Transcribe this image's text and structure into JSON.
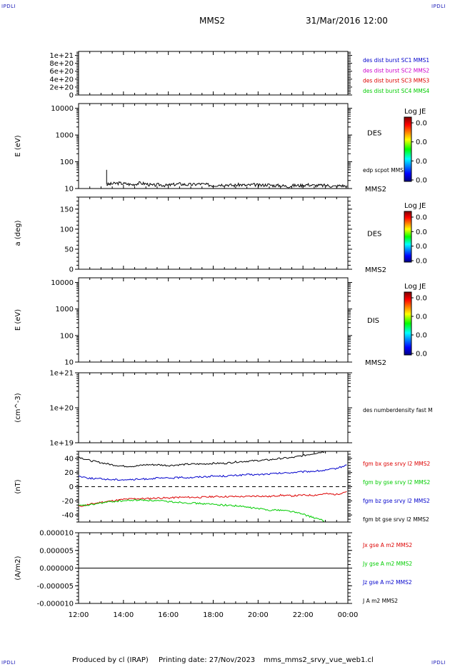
{
  "corner_label": "IPDLI",
  "header": {
    "spacecraft": "MMS2",
    "date": "31/Mar/2016 12:00"
  },
  "footer": {
    "produced_by": "Produced by cl (IRAP)",
    "printing_date": "Printing date: 27/Nov/2023",
    "file": "mms_mms2_srvy_vue_web1.cl"
  },
  "colors": {
    "black": "#000000",
    "red": "#dd0000",
    "green": "#00cc00",
    "blue": "#0000cc",
    "magenta": "#cc00cc"
  },
  "colorbar": {
    "title": "Log JE",
    "ticks": [
      "0.0",
      "0.0",
      "0.0",
      "0.0"
    ]
  },
  "time_axis": {
    "ticks": [
      "12:00",
      "14:00",
      "16:00",
      "18:00",
      "20:00",
      "22:00",
      "00:00"
    ]
  },
  "chart_data": [
    {
      "type": "line",
      "panel": "distributions",
      "ylabel": "",
      "yticks": [
        "1e+21",
        "8e+20",
        "6e+20",
        "4e+20",
        "2e+20",
        "0"
      ],
      "ylim": [
        0,
        1.1e+21
      ],
      "dashed_zero": true,
      "series": [
        {
          "name": "des dist burst SC1 MMS1",
          "color": "#0000cc"
        },
        {
          "name": "des dist burst SC2 MMS2",
          "color": "#cc00cc"
        },
        {
          "name": "des dist burst SC3 MMS3",
          "color": "#dd0000"
        },
        {
          "name": "des dist burst SC4 MMS4",
          "color": "#00cc00"
        }
      ]
    },
    {
      "type": "heatmap",
      "panel": "des-energy",
      "ylabel": "E (eV)",
      "yscale": "log",
      "yticks": [
        "10000",
        "1000",
        "100",
        "10"
      ],
      "ylim": [
        10,
        15000
      ],
      "species_label": "DES",
      "sc_label": "MMS2",
      "overlay": {
        "name": "edp scpot MMS2",
        "spike": {
          "x": 13.25,
          "y": 50
        },
        "x": [
          13.25,
          13.5,
          13.8,
          14.1,
          14.4,
          14.7,
          15.0,
          15.3,
          15.6,
          15.9,
          16.2,
          16.5,
          16.8,
          17.1,
          17.4,
          17.7,
          18.0,
          18.3,
          18.6,
          18.9,
          19.2,
          19.5,
          19.8,
          20.1,
          20.4,
          20.7,
          21.0,
          21.3,
          21.6,
          21.9,
          22.2,
          22.5,
          22.8,
          23.1,
          23.4,
          23.7,
          24.0
        ],
        "y": [
          14,
          15,
          16,
          15,
          14,
          16,
          15,
          13,
          14,
          13,
          14,
          15,
          14,
          14,
          15,
          14,
          13,
          14,
          14,
          13,
          14,
          13,
          14,
          13,
          14,
          13,
          13,
          12,
          13,
          13,
          14,
          13,
          13,
          13,
          12,
          13,
          12
        ]
      }
    },
    {
      "type": "heatmap",
      "panel": "des-pitch",
      "ylabel": "a (deg)",
      "yticks": [
        "150",
        "100",
        "50",
        "0"
      ],
      "ylim": [
        0,
        180
      ],
      "species_label": "DES",
      "sc_label": "MMS2"
    },
    {
      "type": "heatmap",
      "panel": "dis-energy",
      "ylabel": "E (eV)",
      "yscale": "log",
      "yticks": [
        "10000",
        "1000",
        "100",
        "10"
      ],
      "ylim": [
        10,
        15000
      ],
      "species_label": "DIS",
      "sc_label": "MMS2"
    },
    {
      "type": "line",
      "panel": "density",
      "ylabel": "(cm^-3)",
      "yscale": "log",
      "yticks": [
        "1e+21",
        "1e+20",
        "1e+19"
      ],
      "ylim": [
        1e+19,
        1e+21
      ],
      "series": [
        {
          "name": "des numberdensity fast M",
          "color": "#000000"
        }
      ]
    },
    {
      "type": "line",
      "panel": "fgm",
      "ylabel": "(nT)",
      "yticks": [
        "40",
        "20",
        "0",
        "-20",
        "-40"
      ],
      "ylim": [
        -50,
        50
      ],
      "dashed_zero": true,
      "x": [
        12,
        12.5,
        13,
        13.5,
        14,
        14.5,
        15,
        15.5,
        16,
        16.5,
        17,
        17.5,
        18,
        18.5,
        19,
        19.5,
        20,
        20.5,
        21,
        21.5,
        22,
        22.5,
        23,
        23.5,
        24
      ],
      "series": [
        {
          "name": "fgm bx gse srvy l2 MMS2",
          "color": "#dd0000",
          "values": [
            -28,
            -25,
            -22,
            -20,
            -18,
            -17,
            -17,
            -16,
            -16,
            -15,
            -15,
            -15,
            -14,
            -14,
            -14,
            -14,
            -13,
            -14,
            -12,
            -13,
            -12,
            -12,
            -10,
            -11,
            -6
          ]
        },
        {
          "name": "fgm by gse srvy l2 MMS2",
          "color": "#00cc00",
          "values": [
            -27,
            -26,
            -23,
            -21,
            -20,
            -19,
            -19,
            -20,
            -21,
            -22,
            -23,
            -24,
            -25,
            -26,
            -27,
            -29,
            -31,
            -33,
            -33,
            -35,
            -39,
            -44,
            -49,
            null,
            null
          ]
        },
        {
          "name": "fgm bz gse srvy l2 MMS2",
          "color": "#0000cc",
          "values": [
            15,
            12,
            11,
            10,
            10,
            10,
            11,
            12,
            12,
            13,
            13,
            14,
            15,
            15,
            16,
            17,
            17,
            18,
            19,
            20,
            21,
            22,
            23,
            26,
            31
          ]
        },
        {
          "name": "fgm bt gse srvy l2 MMS2",
          "color": "#000000",
          "values": [
            42,
            37,
            34,
            31,
            29,
            29,
            31,
            31,
            30,
            31,
            32,
            32,
            33,
            33,
            35,
            36,
            37,
            38,
            40,
            41,
            44,
            47,
            50,
            null,
            null
          ]
        }
      ]
    },
    {
      "type": "line",
      "panel": "current",
      "ylabel": "(A/m2)",
      "yticks": [
        "0.000010",
        "0.000005",
        "0.000000",
        "-0.000005",
        "-0.000010"
      ],
      "ylim": [
        -1e-05,
        1e-05
      ],
      "series": [
        {
          "name": "Jx gse A m2 MMS2",
          "color": "#dd0000"
        },
        {
          "name": "Jy gse A m2 MMS2",
          "color": "#00cc00"
        },
        {
          "name": "Jz gse A m2 MMS2",
          "color": "#0000cc"
        },
        {
          "name": "J A m2 MMS2",
          "color": "#000000"
        }
      ]
    }
  ]
}
